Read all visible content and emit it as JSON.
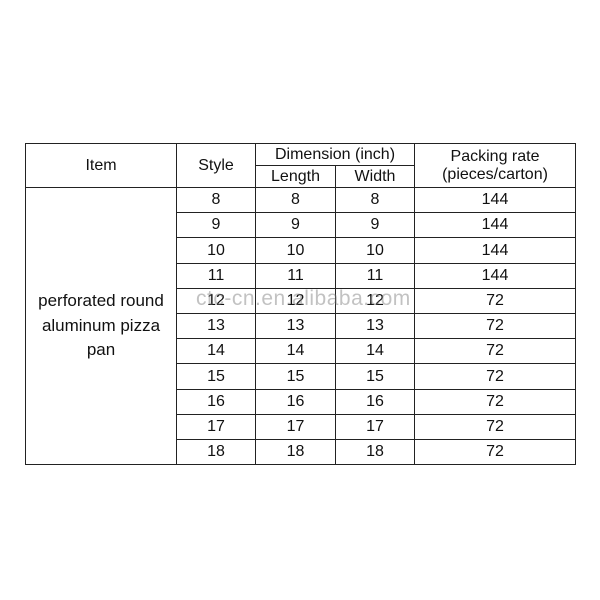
{
  "table": {
    "headers": {
      "item": "Item",
      "style": "Style",
      "dimension": "Dimension (inch)",
      "length": "Length",
      "width": "Width",
      "packing_line1": "Packing rate",
      "packing_line2": "(pieces/carton)"
    },
    "item_name_lines": [
      "perforated round",
      "aluminum pizza",
      "pan"
    ],
    "rows": [
      {
        "style": "8",
        "length": "8",
        "width": "8",
        "packing": "144"
      },
      {
        "style": "9",
        "length": "9",
        "width": "9",
        "packing": "144"
      },
      {
        "style": "10",
        "length": "10",
        "width": "10",
        "packing": "144"
      },
      {
        "style": "11",
        "length": "11",
        "width": "11",
        "packing": "144"
      },
      {
        "style": "12",
        "length": "12",
        "width": "12",
        "packing": "72"
      },
      {
        "style": "13",
        "length": "13",
        "width": "13",
        "packing": "72"
      },
      {
        "style": "14",
        "length": "14",
        "width": "14",
        "packing": "72"
      },
      {
        "style": "15",
        "length": "15",
        "width": "15",
        "packing": "72"
      },
      {
        "style": "16",
        "length": "16",
        "width": "16",
        "packing": "72"
      },
      {
        "style": "17",
        "length": "17",
        "width": "17",
        "packing": "72"
      },
      {
        "style": "18",
        "length": "18",
        "width": "18",
        "packing": "72"
      }
    ]
  },
  "watermark": "ctc-cn.en.alibaba.com"
}
